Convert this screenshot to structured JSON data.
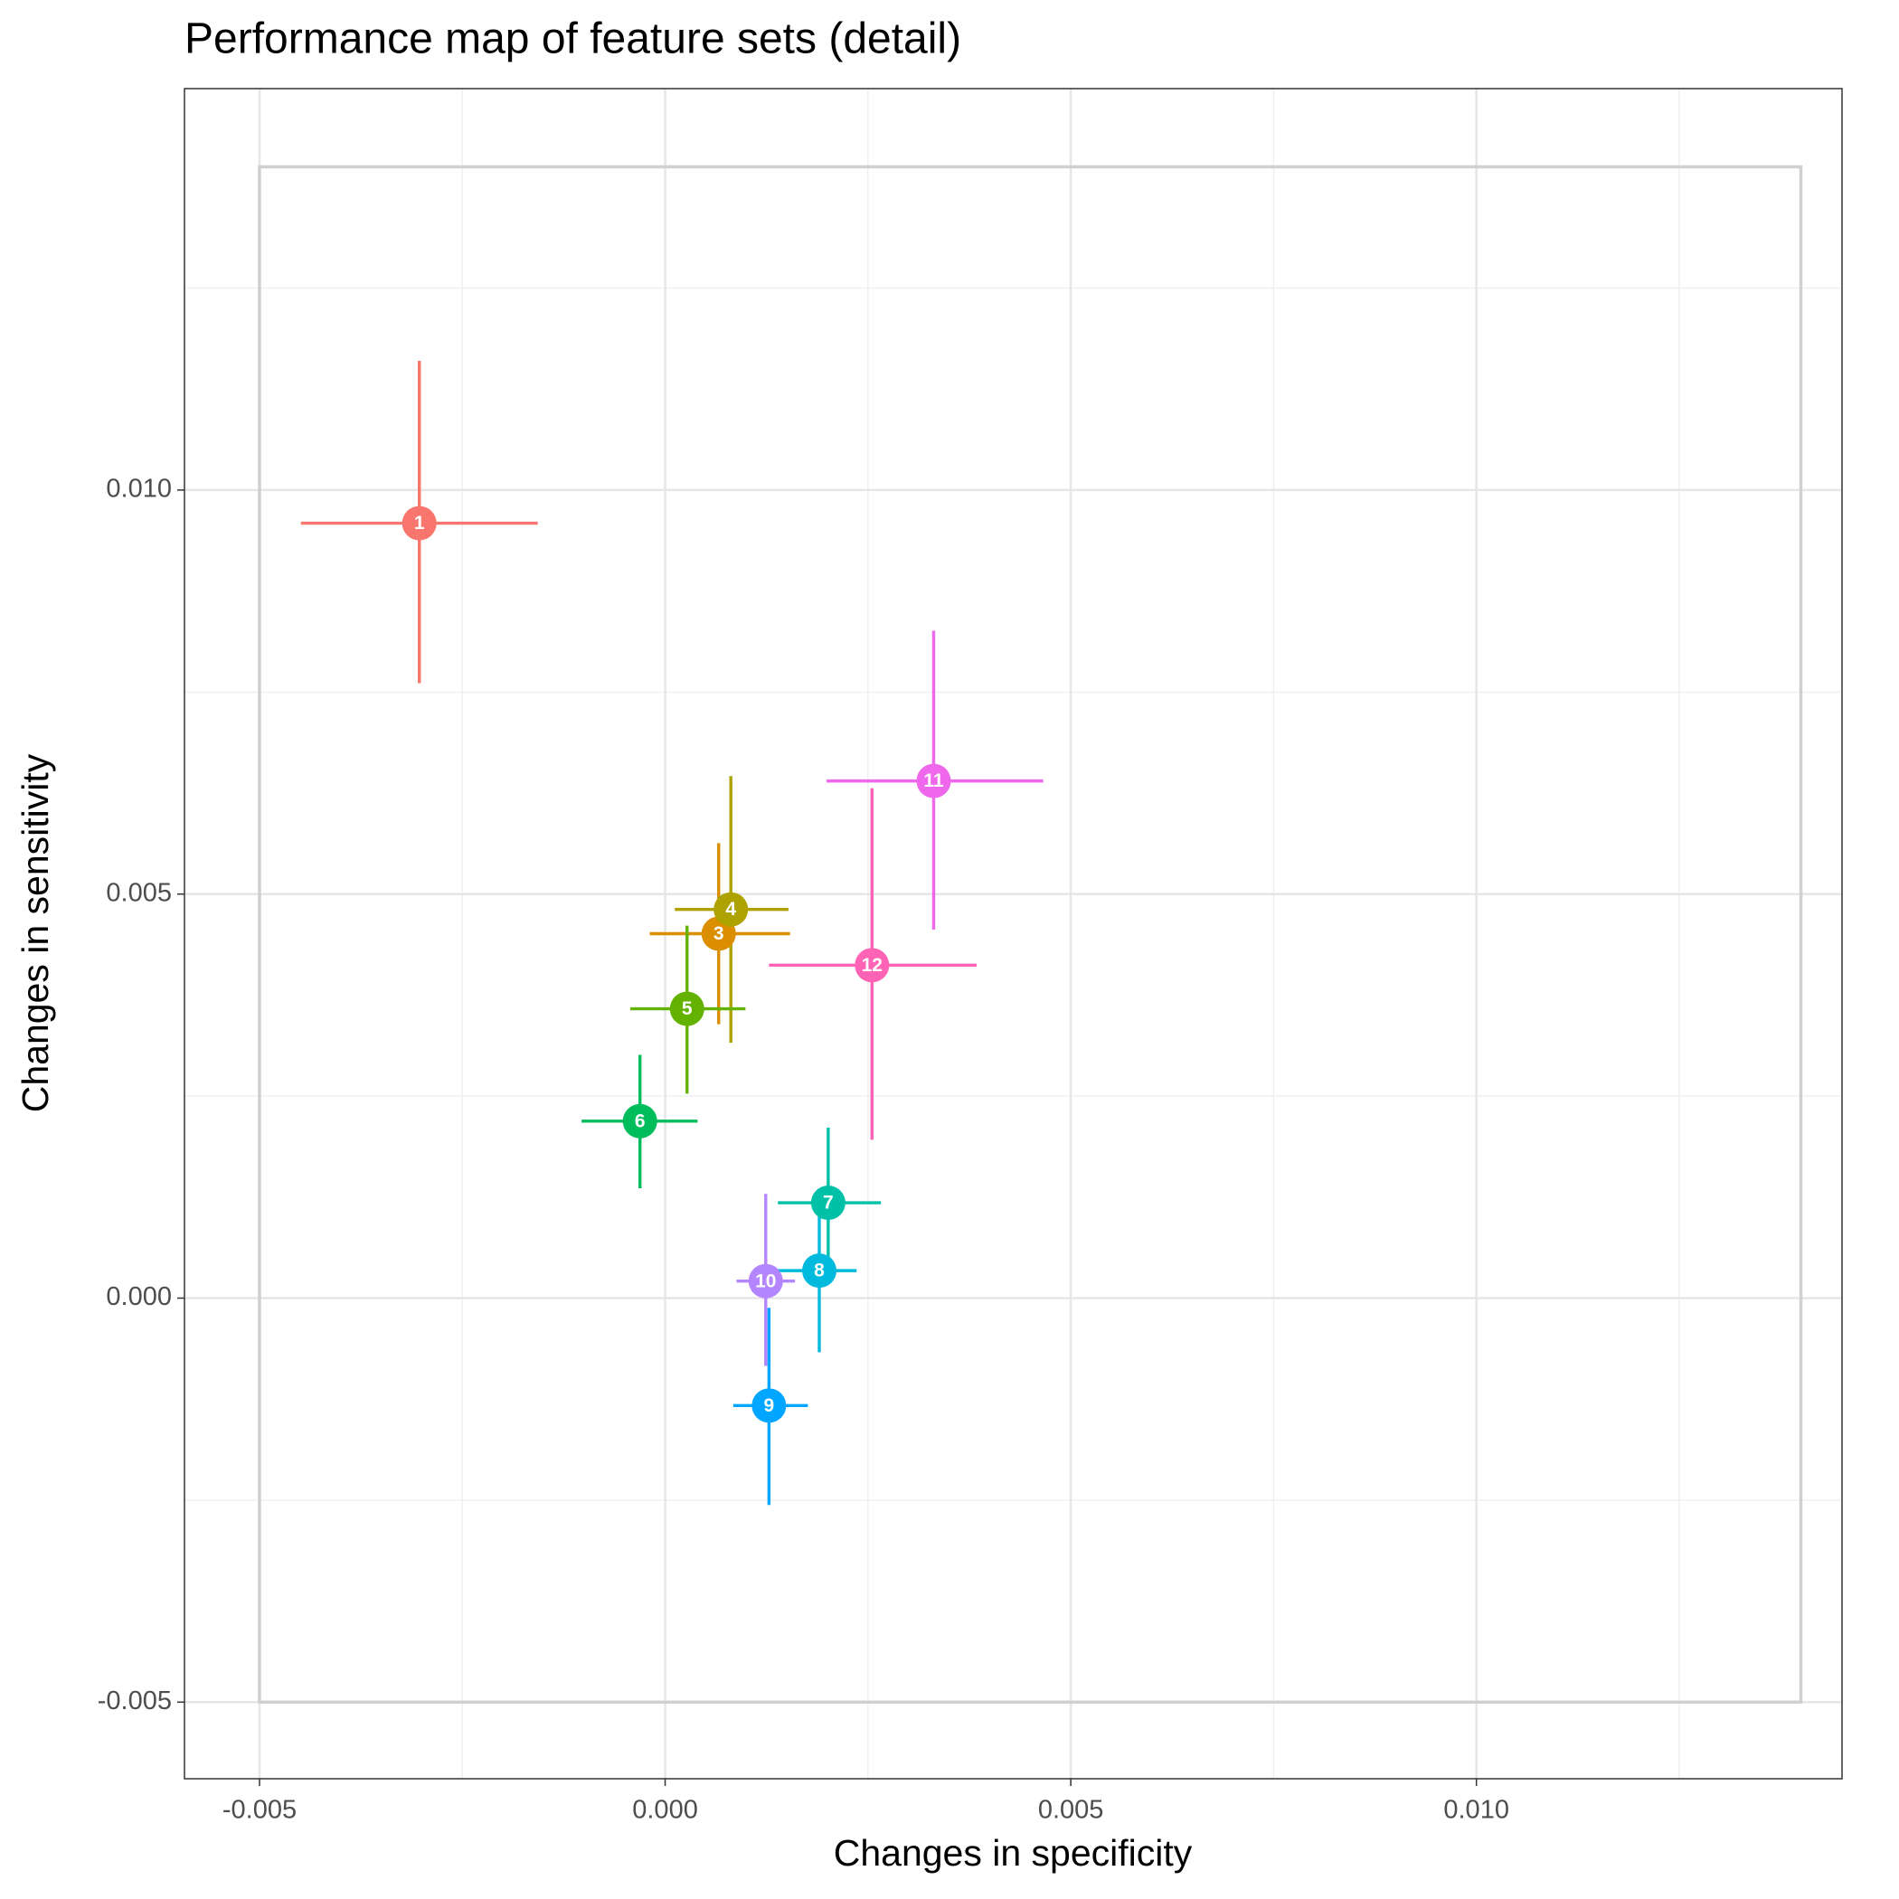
{
  "chart_data": {
    "type": "scatter",
    "title": "Performance map of feature sets (detail)",
    "x_label": "Changes in specificity",
    "y_label": "Changes in sensitivity",
    "xlim": [
      -0.005925,
      0.014507
    ],
    "ylim": [
      -0.005948,
      0.014968
    ],
    "xticks": [
      {
        "value": -0.005,
        "label": "-0.005"
      },
      {
        "value": 0,
        "label": "0.000"
      },
      {
        "value": 0.005,
        "label": "0.005"
      },
      {
        "value": 0.01,
        "label": "0.010"
      }
    ],
    "yticks": [
      {
        "value": -0.005,
        "label": "-0.005"
      },
      {
        "value": 0,
        "label": "0.000"
      },
      {
        "value": 0.005,
        "label": "0.005"
      },
      {
        "value": 0.01,
        "label": "0.010"
      }
    ],
    "xminor": [
      -0.0025,
      0.0025,
      0.0075,
      0.0125
    ],
    "yminor": [
      -0.0025,
      0.0025,
      0.0075,
      0.0125
    ],
    "grid": true,
    "reference_box": {
      "x": [
        -0.005,
        0.014
      ],
      "y": [
        -0.005,
        0.014
      ],
      "color": "#d0d0d0"
    },
    "points": [
      {
        "label": "1",
        "color": "#F8766D",
        "x": -0.00303,
        "y": 0.00959,
        "xmin": -0.00449,
        "xmax": -0.00157,
        "ymin": 0.00761,
        "ymax": 0.0116
      },
      {
        "label": "3",
        "color": "#DB8E00",
        "x": 0.00066,
        "y": 0.00451,
        "xmin": -0.00019,
        "xmax": 0.00154,
        "ymin": 0.00339,
        "ymax": 0.00563
      },
      {
        "label": "4",
        "color": "#AEA200",
        "x": 0.00081,
        "y": 0.00481,
        "xmin": 0.00012,
        "xmax": 0.00152,
        "ymin": 0.00316,
        "ymax": 0.00646
      },
      {
        "label": "5",
        "color": "#64B200",
        "x": 0.00027,
        "y": 0.00358,
        "xmin": -0.00043,
        "xmax": 0.00099,
        "ymin": 0.00253,
        "ymax": 0.00461
      },
      {
        "label": "6",
        "color": "#00BD5C",
        "x": -0.00031,
        "y": 0.00219,
        "xmin": -0.00103,
        "xmax": 0.0004,
        "ymin": 0.00136,
        "ymax": 0.00301
      },
      {
        "label": "7",
        "color": "#00C1A7",
        "x": 0.00201,
        "y": 0.00118,
        "xmin": 0.00139,
        "xmax": 0.00266,
        "ymin": 0.00033,
        "ymax": 0.00211
      },
      {
        "label": "8",
        "color": "#00BADE",
        "x": 0.0019,
        "y": 0.00034,
        "xmin": 0.00137,
        "xmax": 0.00236,
        "ymin": -0.00067,
        "ymax": 0.00123
      },
      {
        "label": "9",
        "color": "#00A6FF",
        "x": 0.00128,
        "y": -0.00133,
        "xmin": 0.00084,
        "xmax": 0.00176,
        "ymin": -0.00256,
        "ymax": -0.00012
      },
      {
        "label": "10",
        "color": "#B385FF",
        "x": 0.00124,
        "y": 0.00021,
        "xmin": 0.00088,
        "xmax": 0.0016,
        "ymin": -0.00084,
        "ymax": 0.00129
      },
      {
        "label": "11",
        "color": "#EF67EB",
        "x": 0.00331,
        "y": 0.0064,
        "xmin": 0.00199,
        "xmax": 0.00466,
        "ymin": 0.00456,
        "ymax": 0.00826
      },
      {
        "label": "12",
        "color": "#FF63B6",
        "x": 0.00255,
        "y": 0.00412,
        "xmin": 0.00128,
        "xmax": 0.00384,
        "ymin": 0.00196,
        "ymax": 0.00631
      }
    ]
  }
}
